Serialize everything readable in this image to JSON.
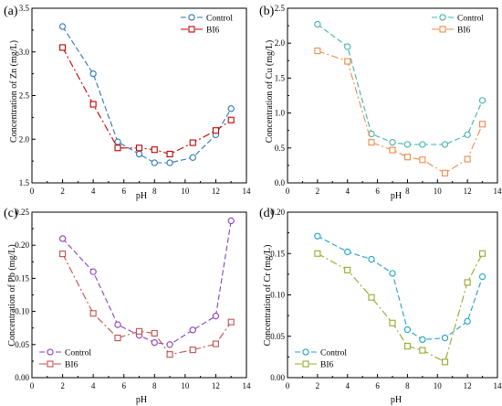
{
  "chart_data": [
    {
      "panel_label": "(a)",
      "type": "line",
      "xlabel": "pH",
      "ylabel": "Concentration of Zn (mg/L)",
      "xlim": [
        0,
        14
      ],
      "ylim": [
        1.5,
        3.5
      ],
      "xticks": [
        0,
        2,
        4,
        6,
        8,
        10,
        12,
        14
      ],
      "xtick_labels": [
        "0",
        "2",
        "4",
        "6",
        "8",
        "10",
        "12",
        "14"
      ],
      "yticks": [
        1.5,
        2.0,
        2.5,
        3.0,
        3.5
      ],
      "ytick_labels": [
        "1.5",
        "2.0",
        "2.5",
        "3.0",
        "3.5"
      ],
      "legend_position": "top-right",
      "series": [
        {
          "name": "Control",
          "color": "#2e75b6",
          "marker": "circle",
          "dash": "6,3",
          "x": [
            2,
            4,
            5.6,
            7,
            8,
            9,
            10.5,
            12,
            13
          ],
          "y": [
            3.29,
            2.75,
            1.97,
            1.83,
            1.73,
            1.73,
            1.79,
            2.05,
            2.35
          ]
        },
        {
          "name": "BI6",
          "color": "#c00000",
          "marker": "square",
          "dash": "8,3,2,3",
          "x": [
            2,
            4,
            5.6,
            7,
            8,
            9,
            10.5,
            12,
            13
          ],
          "y": [
            3.05,
            2.4,
            1.9,
            1.9,
            1.88,
            1.83,
            1.96,
            2.1,
            2.22
          ]
        }
      ]
    },
    {
      "panel_label": "(b)",
      "type": "line",
      "xlabel": "pH",
      "ylabel": "Concentration of Cu (mg/L)",
      "xlim": [
        0,
        14
      ],
      "ylim": [
        0,
        2.5
      ],
      "xticks": [
        0,
        2,
        4,
        6,
        8,
        10,
        12,
        14
      ],
      "xtick_labels": [
        "0",
        "2",
        "4",
        "6",
        "8",
        "10",
        "12",
        "14"
      ],
      "yticks": [
        0.0,
        0.5,
        1.0,
        1.5,
        2.0,
        2.5
      ],
      "ytick_labels": [
        "0.0",
        "0.5",
        "1.0",
        "1.5",
        "2.0",
        "2.5"
      ],
      "legend_position": "top-right",
      "series": [
        {
          "name": "Control",
          "color": "#3fb4a8",
          "marker": "circle",
          "dash": "6,3",
          "x": [
            2,
            4,
            5.6,
            7,
            8,
            9,
            10.5,
            12,
            13
          ],
          "y": [
            2.27,
            1.95,
            0.7,
            0.58,
            0.55,
            0.55,
            0.55,
            0.69,
            1.18
          ]
        },
        {
          "name": "BI6",
          "color": "#ef8a4a",
          "marker": "square",
          "dash": "8,3,2,3",
          "x": [
            2,
            4,
            5.6,
            7,
            8,
            9,
            10.5,
            12,
            13
          ],
          "y": [
            1.89,
            1.74,
            0.58,
            0.47,
            0.37,
            0.33,
            0.14,
            0.34,
            0.84
          ]
        }
      ]
    },
    {
      "panel_label": "(c)",
      "type": "line",
      "xlabel": "pH",
      "ylabel": "Concentration of Pb (mg/L)",
      "xlim": [
        0,
        14
      ],
      "ylim": [
        0,
        0.25
      ],
      "xticks": [
        0,
        2,
        4,
        6,
        8,
        10,
        12,
        14
      ],
      "xtick_labels": [
        "0",
        "2",
        "4",
        "6",
        "8",
        "10",
        "12",
        "14"
      ],
      "yticks": [
        0,
        0.05,
        0.1,
        0.15,
        0.2,
        0.25
      ],
      "ytick_labels": [
        "0.00",
        "0.05",
        "0.10",
        "0.15",
        "0.20",
        "0.25"
      ],
      "legend_position": "bottom-left",
      "series": [
        {
          "name": "Control",
          "color": "#8e3fb8",
          "marker": "circle",
          "dash": "6,3",
          "x": [
            2,
            4,
            5.6,
            7,
            8,
            9,
            10.5,
            12,
            13
          ],
          "y": [
            0.21,
            0.16,
            0.08,
            0.064,
            0.053,
            0.05,
            0.072,
            0.093,
            0.237
          ]
        },
        {
          "name": "BI6",
          "color": "#c0504d",
          "marker": "square",
          "dash": "8,3,2,3",
          "x": [
            2,
            4,
            5.6,
            7,
            8,
            9,
            10.5,
            12,
            13
          ],
          "y": [
            0.187,
            0.097,
            0.06,
            0.07,
            0.067,
            0.035,
            0.042,
            0.051,
            0.084
          ]
        }
      ]
    },
    {
      "panel_label": "(d)",
      "type": "line",
      "xlabel": "pH",
      "ylabel": "Concentration of Cr (mg/L)",
      "xlim": [
        0,
        14
      ],
      "ylim": [
        0,
        0.2
      ],
      "xticks": [
        0,
        2,
        4,
        6,
        8,
        10,
        12,
        14
      ],
      "xtick_labels": [
        "0",
        "2",
        "4",
        "6",
        "8",
        "10",
        "12",
        "14"
      ],
      "yticks": [
        0,
        0.05,
        0.1,
        0.15,
        0.2
      ],
      "ytick_labels": [
        "0.00",
        "0.05",
        "0.10",
        "0.15",
        "0.20"
      ],
      "legend_position": "bottom-left",
      "series": [
        {
          "name": "Control",
          "color": "#1fa3c4",
          "marker": "circle",
          "dash": "6,3",
          "x": [
            2,
            4,
            5.6,
            7,
            8,
            9,
            10.5,
            12,
            13
          ],
          "y": [
            0.171,
            0.152,
            0.143,
            0.126,
            0.058,
            0.046,
            0.048,
            0.068,
            0.122
          ]
        },
        {
          "name": "BI6",
          "color": "#9aa82a",
          "marker": "square",
          "dash": "8,3,2,3",
          "x": [
            2,
            4,
            5.6,
            7,
            8,
            9,
            10.5,
            12,
            13
          ],
          "y": [
            0.15,
            0.13,
            0.097,
            0.066,
            0.038,
            0.033,
            0.019,
            0.115,
            0.15
          ]
        }
      ]
    }
  ]
}
